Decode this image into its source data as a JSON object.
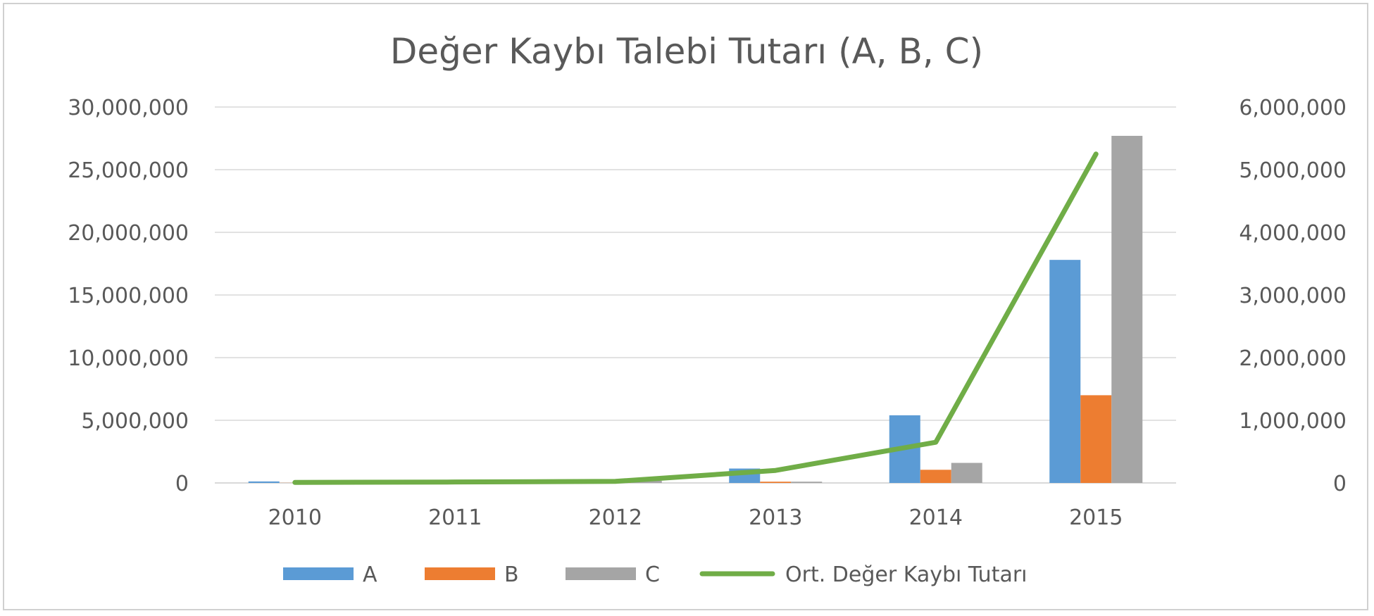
{
  "chart_data": {
    "type": "bar",
    "title": "Değer Kaybı Talebi Tutarı (A, B, C)",
    "categories": [
      "2010",
      "2011",
      "2012",
      "2013",
      "2014",
      "2015"
    ],
    "series": [
      {
        "name": "A",
        "type": "bar",
        "axis": "left",
        "color": "#5b9bd5",
        "values": [
          120000,
          40000,
          80000,
          1150000,
          5400000,
          17800000
        ]
      },
      {
        "name": "B",
        "type": "bar",
        "axis": "left",
        "color": "#ed7d31",
        "values": [
          10000,
          20000,
          30000,
          100000,
          1050000,
          7000000
        ]
      },
      {
        "name": "C",
        "type": "bar",
        "axis": "left",
        "color": "#a5a5a5",
        "values": [
          10000,
          40000,
          180000,
          100000,
          1600000,
          27700000
        ]
      },
      {
        "name": "Ort. Değer Kaybı Tutarı",
        "type": "line",
        "axis": "right",
        "color": "#70ad47",
        "values": [
          8000,
          15000,
          25000,
          200000,
          650000,
          5250000
        ]
      }
    ],
    "y_left": {
      "min": 0,
      "max": 30000000,
      "step": 5000000,
      "ticks": [
        "0",
        "5,000,000",
        "10,000,000",
        "15,000,000",
        "20,000,000",
        "25,000,000",
        "30,000,000"
      ]
    },
    "y_right": {
      "min": 0,
      "max": 6000000,
      "step": 1000000,
      "ticks": [
        "0",
        "1,000,000",
        "2,000,000",
        "3,000,000",
        "4,000,000",
        "5,000,000",
        "6,000,000"
      ]
    },
    "grid": true,
    "legend": "bottom"
  }
}
